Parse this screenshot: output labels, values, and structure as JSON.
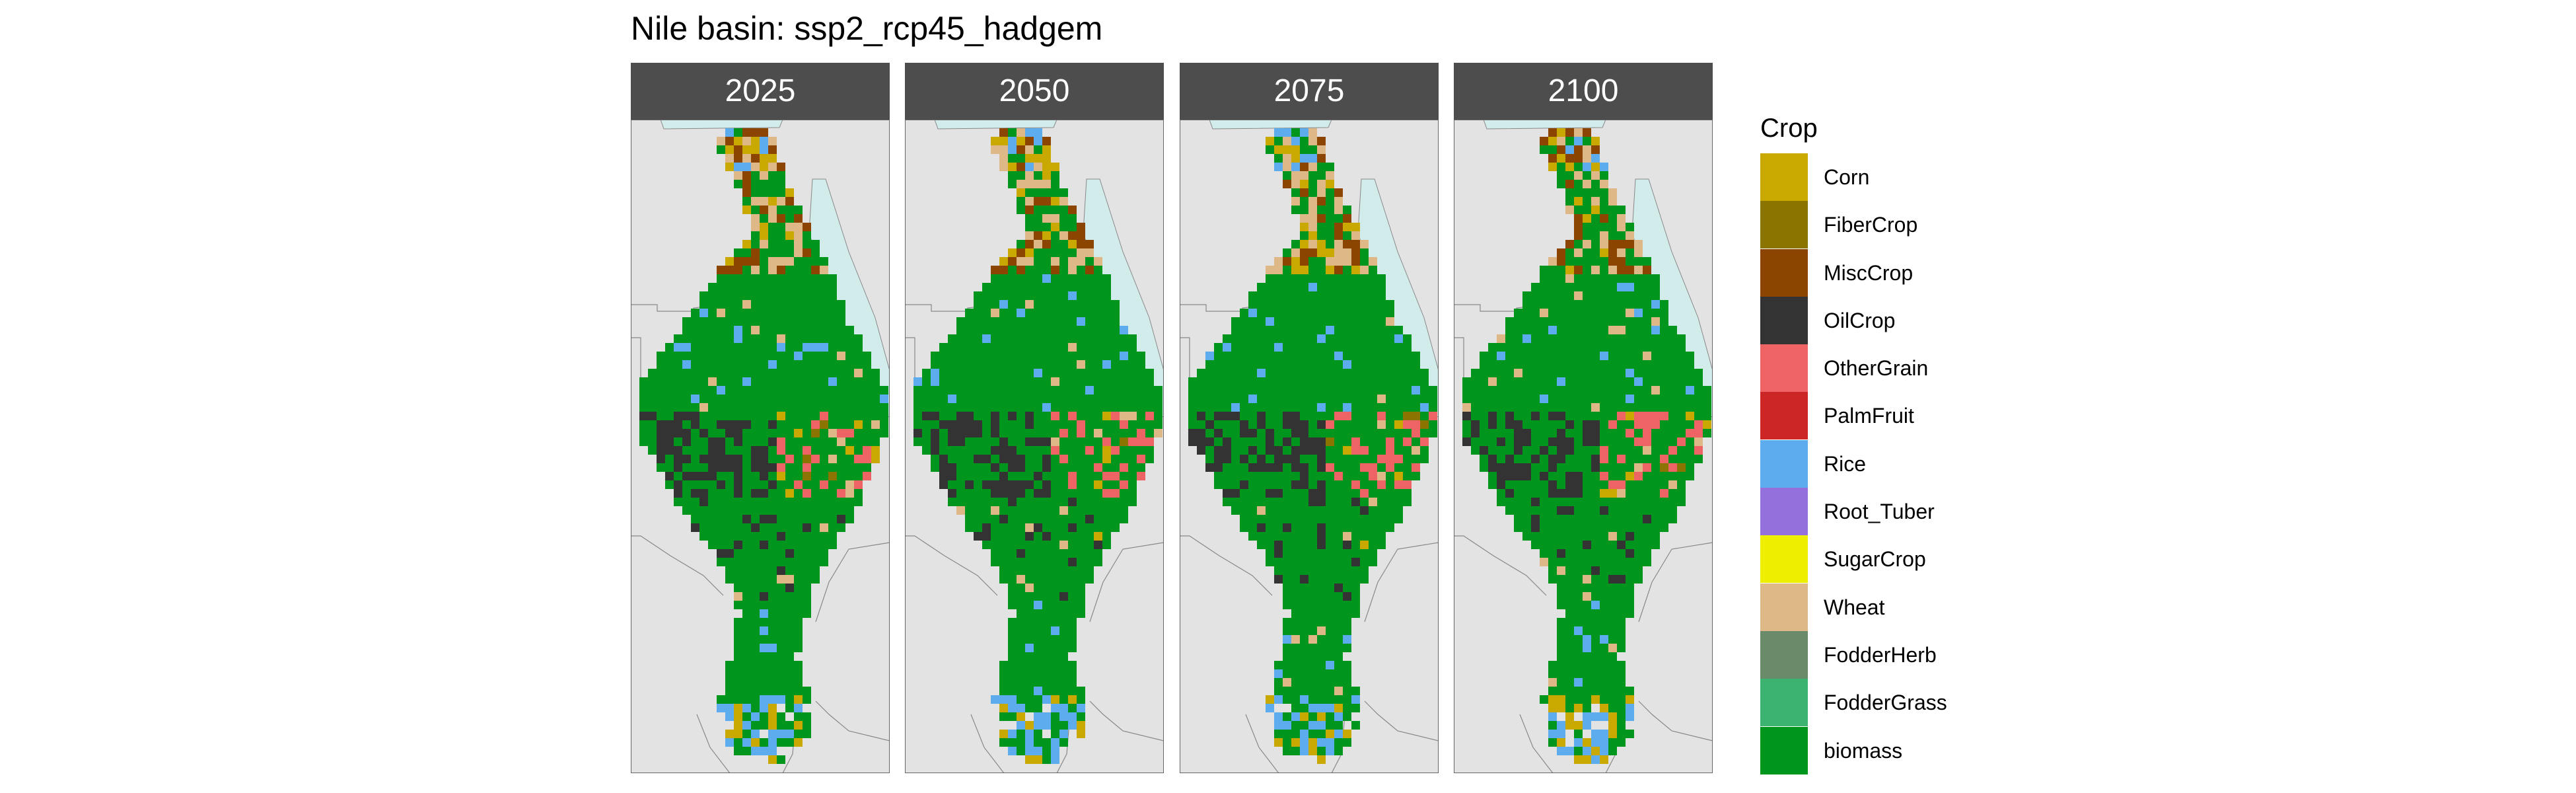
{
  "title": "Nile basin: ssp2_rcp45_hadgem",
  "panels": [
    {
      "year": "2025",
      "seed": 11
    },
    {
      "year": "2050",
      "seed": 23
    },
    {
      "year": "2075",
      "seed": 37
    },
    {
      "year": "2100",
      "seed": 51
    }
  ],
  "legend": {
    "title": "Crop",
    "items": [
      {
        "label": "Corn",
        "color": "#C9A800"
      },
      {
        "label": "FiberCrop",
        "color": "#8B7500"
      },
      {
        "label": "MiscCrop",
        "color": "#8B4500"
      },
      {
        "label": "OilCrop",
        "color": "#333333"
      },
      {
        "label": "OtherGrain",
        "color": "#EE6363"
      },
      {
        "label": "PalmFruit",
        "color": "#CD2626"
      },
      {
        "label": "Rice",
        "color": "#5CACEE"
      },
      {
        "label": "Root_Tuber",
        "color": "#9370DB"
      },
      {
        "label": "SugarCrop",
        "color": "#EEEE00"
      },
      {
        "label": "Wheat",
        "color": "#DEB887"
      },
      {
        "label": "FodderHerb",
        "color": "#698B69"
      },
      {
        "label": "FodderGrass",
        "color": "#3CB371"
      },
      {
        "label": "biomass",
        "color": "#00961E"
      }
    ]
  },
  "map_style": {
    "background": "#e3e3e3",
    "boundary": "#888888",
    "water": "#d2ecec"
  }
}
